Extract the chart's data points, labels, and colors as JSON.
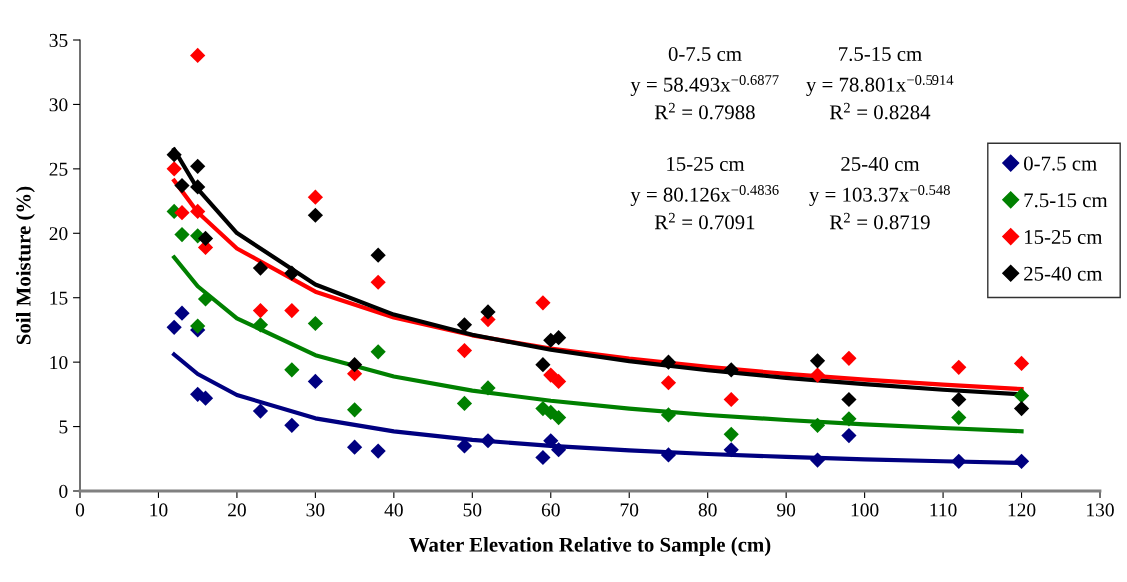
{
  "chart_data": {
    "type": "scatter",
    "xlabel": "Water Elevation Relative to Sample (cm)",
    "ylabel": "Soil Moisture (%)",
    "xlim": [
      0,
      130
    ],
    "xticks": [
      0,
      10,
      20,
      30,
      40,
      50,
      60,
      70,
      80,
      90,
      100,
      110,
      120,
      130
    ],
    "ylim": [
      0,
      35
    ],
    "yticks": [
      0,
      5,
      10,
      15,
      20,
      25,
      30,
      35
    ],
    "grid": false,
    "legend": "right",
    "marker": "diamond",
    "x": [
      12,
      13,
      15,
      15,
      16,
      23,
      27,
      30,
      35,
      38,
      49,
      52,
      59,
      60,
      61,
      75,
      83,
      94,
      98,
      112,
      120
    ],
    "series": [
      {
        "name": "0-7.5 cm",
        "color": "#000080",
        "values": [
          12.7,
          13.8,
          12.5,
          7.5,
          7.2,
          6.2,
          5.1,
          8.5,
          3.4,
          3.1,
          3.5,
          3.9,
          2.6,
          3.9,
          3.2,
          2.8,
          3.2,
          2.4,
          4.3,
          2.3,
          2.3
        ]
      },
      {
        "name": "7.5-15 cm",
        "color": "#008000",
        "values": [
          21.7,
          19.9,
          19.8,
          12.8,
          14.9,
          12.9,
          9.4,
          13.0,
          6.3,
          10.8,
          6.8,
          8.0,
          6.4,
          6.1,
          5.7,
          5.9,
          4.4,
          5.1,
          5.6,
          5.7,
          7.4
        ]
      },
      {
        "name": "15-25 cm",
        "color": "#ff0000",
        "values": [
          25.0,
          21.6,
          33.8,
          21.7,
          18.9,
          14.0,
          14.0,
          22.8,
          9.1,
          16.2,
          10.9,
          13.3,
          14.6,
          9.0,
          8.5,
          8.4,
          7.1,
          9.0,
          10.3,
          9.6,
          9.9
        ]
      },
      {
        "name": "25-40 cm",
        "color": "#000000",
        "values": [
          26.1,
          23.7,
          25.2,
          23.6,
          19.6,
          17.3,
          16.9,
          21.4,
          9.8,
          18.3,
          12.9,
          13.9,
          9.8,
          11.7,
          11.9,
          10.0,
          9.4,
          10.1,
          7.1,
          7.1,
          6.4
        ]
      },
      {
        "type": "line",
        "color": "#000080",
        "marker": "none",
        "line_style": "solid",
        "x": [
          12,
          15,
          20,
          30,
          40,
          50,
          60,
          70,
          80,
          90,
          100,
          110,
          120
        ],
        "values": [
          10.59,
          9.08,
          7.45,
          5.64,
          4.63,
          3.97,
          3.5,
          3.15,
          2.87,
          2.65,
          2.46,
          2.31,
          2.17
        ]
      },
      {
        "type": "line",
        "color": "#008000",
        "marker": "none",
        "line_style": "solid",
        "x": [
          12,
          15,
          20,
          30,
          40,
          50,
          60,
          70,
          80,
          90,
          100,
          110,
          120
        ],
        "values": [
          18.13,
          15.89,
          13.4,
          10.54,
          8.89,
          7.79,
          7.0,
          6.39,
          5.9,
          5.51,
          5.17,
          4.89,
          4.64
        ]
      },
      {
        "type": "line",
        "color": "#ff0000",
        "marker": "none",
        "line_style": "solid",
        "x": [
          12,
          15,
          20,
          30,
          40,
          50,
          60,
          70,
          80,
          90,
          100,
          110,
          120
        ],
        "values": [
          24.09,
          21.63,
          18.82,
          15.47,
          13.46,
          12.08,
          11.06,
          10.27,
          9.63,
          9.09,
          8.64,
          8.25,
          7.91
        ]
      },
      {
        "type": "line",
        "color": "#000000",
        "marker": "none",
        "line_style": "solid",
        "x": [
          12,
          15,
          20,
          30,
          40,
          50,
          60,
          70,
          80,
          90,
          100,
          110,
          120
        ],
        "values": [
          26.49,
          23.44,
          20.02,
          16.03,
          13.69,
          12.12,
          10.96,
          10.08,
          9.37,
          8.78,
          8.29,
          7.86,
          7.5
        ]
      }
    ],
    "annotations": [
      "0-7.5 cm\ny = 58.493x$^{−0.6877}$\nR$^{2}$ = 0.7988",
      "7.5-15 cm\ny = 78.801x$^{−0.5914}$\nR$^{2}$ = 0.8284",
      "15-25 cm\ny = 80.126x$^{−0.4836}$\nR$^{2}$ = 0.7091",
      "25-40 cm\ny = 103.37x$^{−0.548}$\nR$^{2}$ = 0.8719"
    ]
  }
}
